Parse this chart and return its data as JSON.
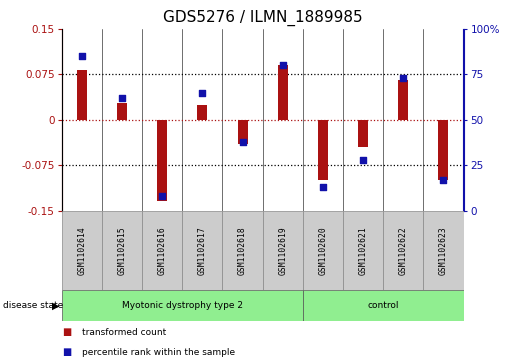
{
  "title": "GDS5276 / ILMN_1889985",
  "samples": [
    "GSM1102614",
    "GSM1102615",
    "GSM1102616",
    "GSM1102617",
    "GSM1102618",
    "GSM1102619",
    "GSM1102620",
    "GSM1102621",
    "GSM1102622",
    "GSM1102623"
  ],
  "transformed_count": [
    0.082,
    0.028,
    -0.135,
    0.025,
    -0.04,
    0.09,
    -0.1,
    -0.045,
    0.065,
    -0.1
  ],
  "percentile_rank": [
    85,
    62,
    8,
    65,
    38,
    80,
    13,
    28,
    73,
    17
  ],
  "ylim_left": [
    -0.15,
    0.15
  ],
  "ylim_right": [
    0,
    100
  ],
  "yticks_left": [
    -0.15,
    -0.075,
    0,
    0.075,
    0.15
  ],
  "yticks_right": [
    0,
    25,
    50,
    75,
    100
  ],
  "hlines_black": [
    -0.075,
    0.075
  ],
  "hline_red": 0,
  "bar_color": "#aa1111",
  "dot_color": "#1111aa",
  "group1_label": "Myotonic dystrophy type 2",
  "group2_label": "control",
  "group1_indices": [
    0,
    1,
    2,
    3,
    4,
    5
  ],
  "group2_indices": [
    6,
    7,
    8,
    9
  ],
  "group_color": "#90EE90",
  "cell_color": "#cccccc",
  "disease_state_label": "disease state",
  "legend_red_label": "transformed count",
  "legend_blue_label": "percentile rank within the sample",
  "title_fontsize": 11,
  "tick_fontsize": 7.5,
  "bar_width": 0.25
}
